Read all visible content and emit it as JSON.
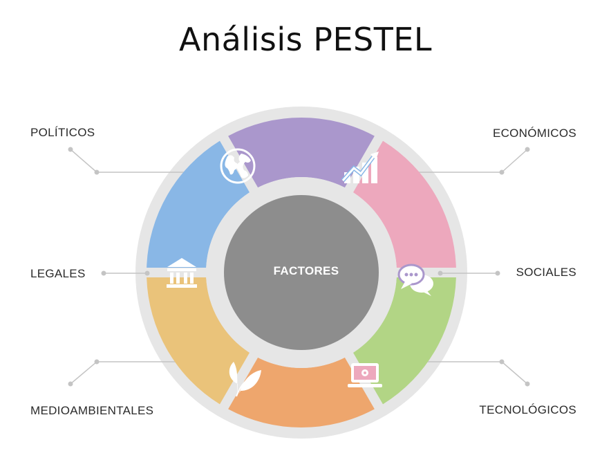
{
  "title": "Análisis PESTEL",
  "center_label": "FACTORES",
  "factors": [
    {
      "label": "POLÍTICOS",
      "color": "#eac37a",
      "icon": "globe-icon"
    },
    {
      "label": "ECONÓMICOS",
      "color": "#89b7e6",
      "icon": "bar-chart-icon"
    },
    {
      "label": "SOCIALES",
      "color": "#aa97cc",
      "icon": "chat-bubbles-icon"
    },
    {
      "label": "TECNOLÓGICOS",
      "color": "#eda8bd",
      "icon": "laptop-gear-icon"
    },
    {
      "label": "MEDIOAMBIENTALES",
      "color": "#b2d585",
      "icon": "leaves-icon"
    },
    {
      "label": "LEGALES",
      "color": "#eea66d",
      "icon": "courthouse-icon"
    }
  ],
  "colors": {
    "outer_ring": "#e6e6e6",
    "center": "#8d8d8d",
    "connector": "#c4c4c4"
  }
}
